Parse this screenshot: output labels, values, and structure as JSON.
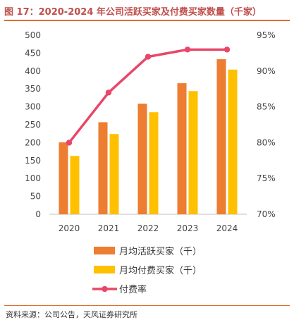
{
  "figure": {
    "title": "图 17：2020-2024 年公司活跃买家及付费买家数量（千家）",
    "source": "资料来源：公司公告，天风证券研究所"
  },
  "chart_data": {
    "type": "bar",
    "categories": [
      "2020",
      "2021",
      "2022",
      "2023",
      "2024"
    ],
    "series": [
      {
        "name": "月均活跃买家（千）",
        "kind": "bar",
        "axis": "left",
        "color": "#ed7d31",
        "values": [
          201,
          257,
          309,
          366,
          433
        ]
      },
      {
        "name": "月均付费买家（千）",
        "kind": "bar",
        "axis": "left",
        "color": "#ffc000",
        "values": [
          163,
          224,
          285,
          344,
          404
        ]
      },
      {
        "name": "付费率",
        "kind": "line",
        "axis": "right",
        "color": "#e8476a",
        "values": [
          80.0,
          87.0,
          92.0,
          93.0,
          93.0
        ]
      }
    ],
    "y_left": {
      "lim": [
        0,
        500
      ],
      "ticks": [
        0,
        50,
        100,
        150,
        200,
        250,
        300,
        350,
        400,
        450,
        500
      ]
    },
    "y_right": {
      "lim": [
        70,
        95
      ],
      "ticks": [
        "70%",
        "75%",
        "80%",
        "85%",
        "90%",
        "95%"
      ]
    },
    "grid": false,
    "legend_position": "bottom"
  }
}
